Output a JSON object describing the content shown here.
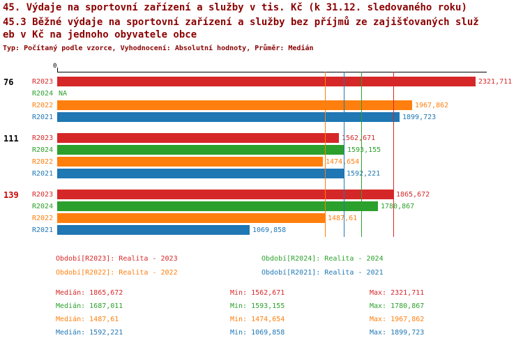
{
  "colors": {
    "R2023": "#d62728",
    "R2024": "#2ca02c",
    "R2022": "#ff7f0e",
    "R2021": "#1f77b4",
    "title": "#8b0000"
  },
  "chart_data": {
    "type": "bar",
    "orientation": "horizontal",
    "title_line1": "45. Výdaje na sportovní zařízení a služby v tis. Kč (k 31.12. sledovaného roku)",
    "title_line2": "45.3 Běžné výdaje na sportovní zařízení a služby bez příjmů ze zajišťovaných služ",
    "title_line3": "eb v Kč na jednoho obyvatele obce",
    "subtitle": "Typ: Počítaný podle vzorce, Vyhodnocení: Absolutní hodnoty, Průměr: Medián",
    "x_axis": {
      "zero_label": "0",
      "xlim": [
        0,
        2400
      ]
    },
    "row_series": [
      "R2023",
      "R2024",
      "R2022",
      "R2021"
    ],
    "groups": [
      {
        "label": "76",
        "label_color": "#000000",
        "bars": [
          {
            "series": "R2023",
            "value": 2321.711,
            "label": "2321,711"
          },
          {
            "series": "R2024",
            "value": null,
            "label": "NA"
          },
          {
            "series": "R2022",
            "value": 1967.862,
            "label": "1967,862"
          },
          {
            "series": "R2021",
            "value": 1899.723,
            "label": "1899,723"
          }
        ]
      },
      {
        "label": "111",
        "label_color": "#000000",
        "bars": [
          {
            "series": "R2023",
            "value": 1562.671,
            "label": "1562,671"
          },
          {
            "series": "R2024",
            "value": 1593.155,
            "label": "1593,155"
          },
          {
            "series": "R2022",
            "value": 1474.654,
            "label": "1474,654"
          },
          {
            "series": "R2021",
            "value": 1592.221,
            "label": "1592,221"
          }
        ]
      },
      {
        "label": "139",
        "label_color": "#cc0000",
        "bars": [
          {
            "series": "R2023",
            "value": 1865.672,
            "label": "1865,672"
          },
          {
            "series": "R2024",
            "value": 1780.867,
            "label": "1780,867"
          },
          {
            "series": "R2022",
            "value": 1487.61,
            "label": "1487,61"
          },
          {
            "series": "R2021",
            "value": 1069.858,
            "label": "1069,858"
          }
        ]
      }
    ],
    "median_lines": [
      {
        "series": "R2023",
        "value": 1865.672
      },
      {
        "series": "R2024",
        "value": 1687.011
      },
      {
        "series": "R2022",
        "value": 1487.61
      },
      {
        "series": "R2021",
        "value": 1592.221
      }
    ]
  },
  "legend": [
    {
      "series": "R2023",
      "text": "Období[R2023]: Realita - 2023"
    },
    {
      "series": "R2024",
      "text": "Období[R2024]: Realita - 2024"
    },
    {
      "series": "R2022",
      "text": "Období[R2022]: Realita - 2022"
    },
    {
      "series": "R2021",
      "text": "Období[R2021]: Realita - 2021"
    }
  ],
  "stats": [
    {
      "series": "R2023",
      "median": "Medián: 1865,672",
      "min": "Min: 1562,671",
      "max": "Max: 2321,711"
    },
    {
      "series": "R2024",
      "median": "Medián: 1687,011",
      "min": "Min: 1593,155",
      "max": "Max: 1780,867"
    },
    {
      "series": "R2022",
      "median": "Medián: 1487,61",
      "min": "Min: 1474,654",
      "max": "Max: 1967,862"
    },
    {
      "series": "R2021",
      "median": "Medián: 1592,221",
      "min": "Min: 1069,858",
      "max": "Max: 1899,723"
    }
  ]
}
